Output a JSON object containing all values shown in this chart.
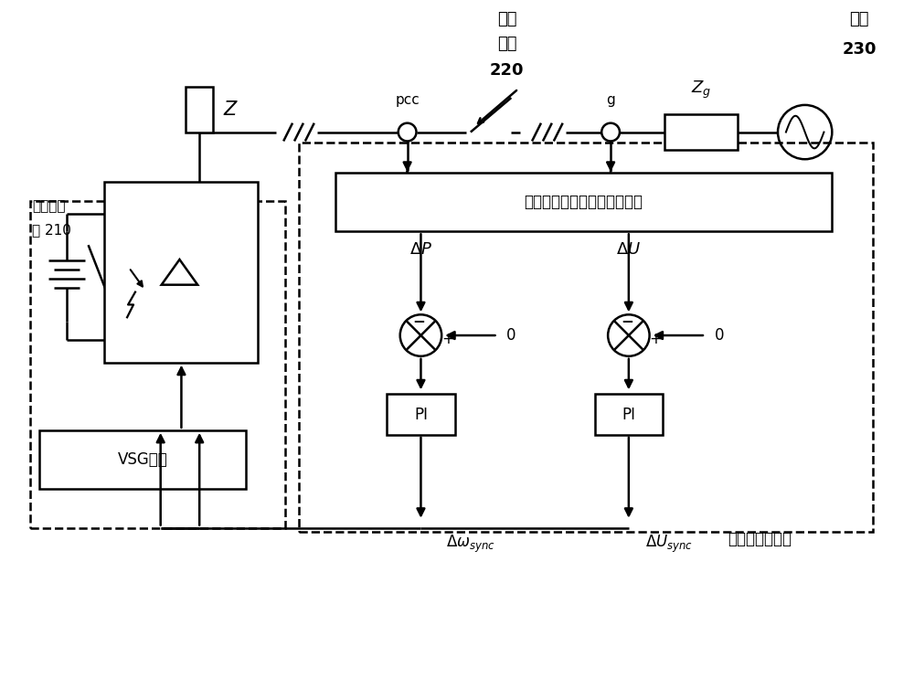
{
  "bg_color": "#ffffff",
  "line_color": "#000000",
  "line_width": 1.8,
  "labels": {
    "grid_switch_title1": "并网",
    "grid_switch_title2": "开关",
    "grid_switch_voltage": "220",
    "grid_label": "电网",
    "grid_voltage": "230",
    "pcc_label": "pcc",
    "g_label": "g",
    "Zg_label": "$Z_g$",
    "Z_label": "$Z$",
    "storage_line1": "储能变流",
    "storage_line2": "器 210",
    "vsg_label": "VSG算法",
    "calc_box_label": "虚拟有功、无功功率差值计算",
    "deltaP_label": "$\\Delta P$",
    "deltaU_label": "$\\Delta U$",
    "delta_omega_sync": "$\\Delta\\omega_{sync}$",
    "delta_U_sync": "$\\Delta U_{sync}$",
    "sync_calc_label": "同步补偿值计算",
    "zero1": "0",
    "zero2": "0",
    "minus1": "−",
    "minus2": "−",
    "plus1": "+",
    "plus2": "+"
  }
}
